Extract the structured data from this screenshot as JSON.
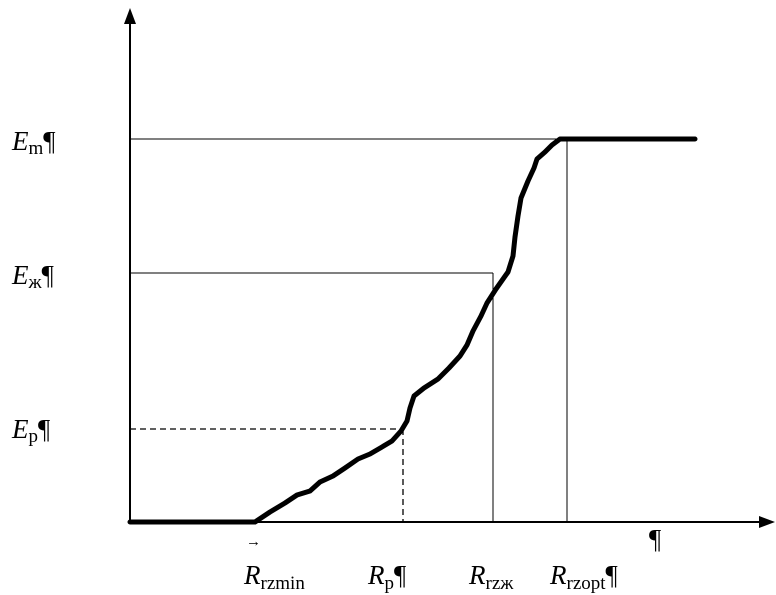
{
  "diagram": {
    "y_labels": [
      {
        "symbol": "E",
        "sub": "m",
        "mark": "¶"
      },
      {
        "symbol": "E",
        "sub": "ж",
        "mark": "¶"
      },
      {
        "symbol": "E",
        "sub": "p",
        "mark": "¶"
      }
    ],
    "x_labels": [
      {
        "symbol": "R",
        "sub": "rzmin",
        "mark": "",
        "arrow": "→"
      },
      {
        "symbol": "R",
        "sub": "p",
        "mark": "¶"
      },
      {
        "symbol": "R",
        "sub": "rzж",
        "mark": ""
      },
      {
        "symbol": "R",
        "sub": "rzopt",
        "mark": "¶"
      }
    ],
    "axis_end_mark": "¶"
  }
}
